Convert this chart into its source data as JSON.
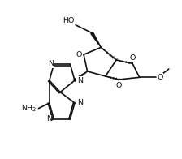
{
  "bg": "#ffffff",
  "lc": "#111111",
  "lw": 1.2,
  "fs": 6.8,
  "xlim": [
    -0.5,
    9.5
  ],
  "ylim": [
    1.2,
    9.0
  ]
}
